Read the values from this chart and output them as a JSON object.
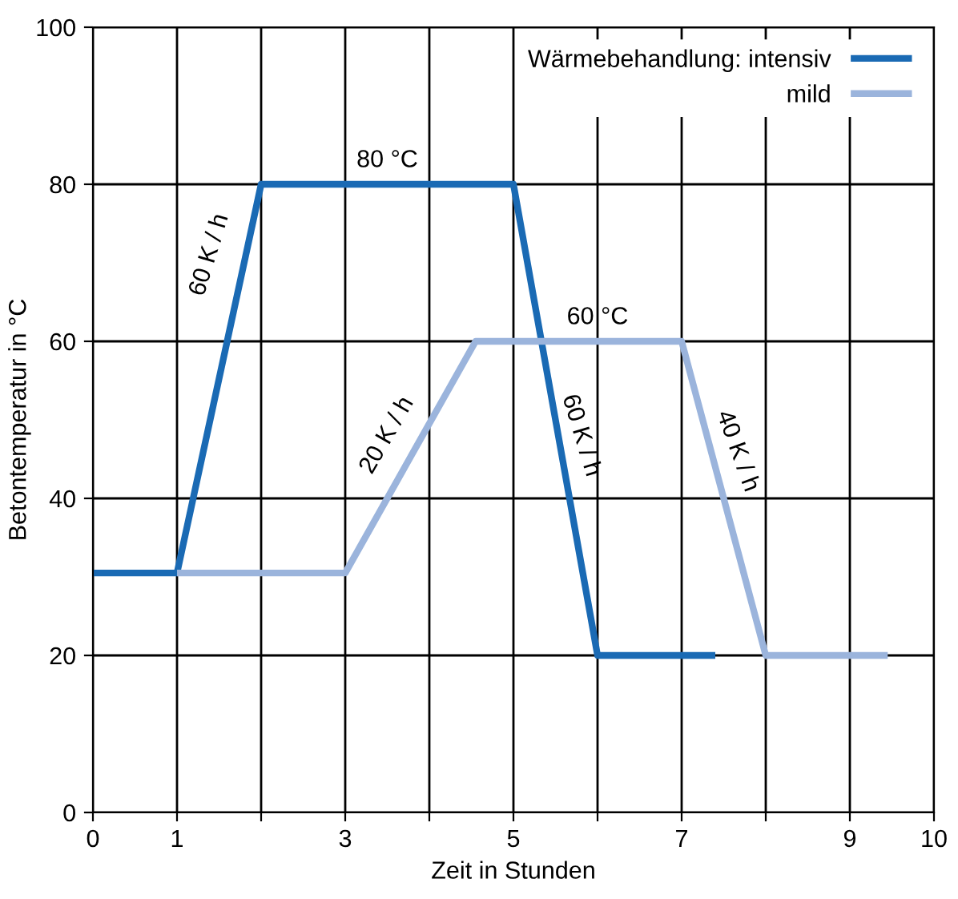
{
  "chart_data": {
    "type": "line",
    "xlabel": "Zeit in Stunden",
    "ylabel": "Betontemperatur in °C",
    "xlim": [
      0,
      10
    ],
    "xticks": [
      0,
      1,
      {
        "value": 2,
        "label": null
      },
      3,
      {
        "value": 4,
        "label": null
      },
      5,
      {
        "value": 6,
        "label": null
      },
      7,
      {
        "value": 8,
        "label": null
      },
      9,
      10
    ],
    "ylim": [
      0,
      100
    ],
    "yticks": [
      0,
      20,
      40,
      60,
      80,
      100
    ],
    "grid": true,
    "legend": "top right",
    "marker": "none",
    "line_style": "solid",
    "series": [
      {
        "name": "Wärmebehandlung: intensiv",
        "color": "#1a6ab4",
        "x": [
          0,
          1,
          2,
          5,
          6,
          7.4
        ],
        "values": [
          30.5,
          30.5,
          80,
          80,
          20,
          20
        ]
      },
      {
        "name": "mild",
        "color": "#9bb4dc",
        "x": [
          1,
          3,
          4.55,
          7,
          8,
          9.45
        ],
        "values": [
          30.5,
          30.5,
          60,
          60,
          20,
          20
        ]
      }
    ],
    "annotations": [
      "60 K / h",
      "80 °C",
      "20 K / h",
      "60 °C",
      "60 K / h",
      "40 K / h"
    ]
  }
}
